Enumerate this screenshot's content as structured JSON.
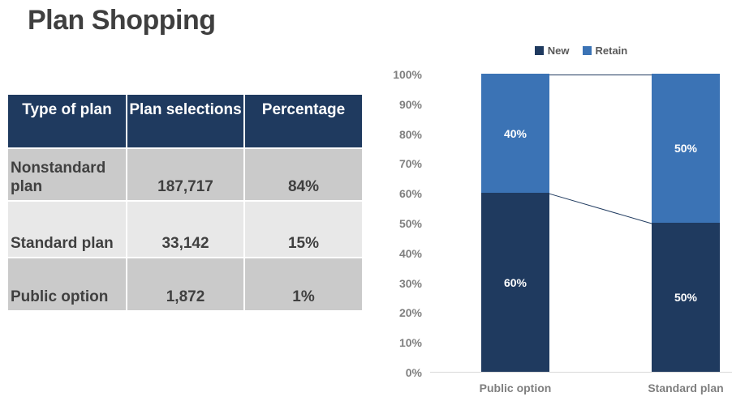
{
  "page": {
    "title": "Plan Shopping"
  },
  "table": {
    "headers": [
      "Type of plan",
      "Plan selections",
      "Percentage"
    ],
    "rows": [
      [
        "Nonstandard plan",
        "187,717",
        "84%"
      ],
      [
        "Standard plan",
        "33,142",
        "15%"
      ],
      [
        "Public option",
        "1,872",
        "1%"
      ]
    ]
  },
  "chart_data": {
    "type": "bar",
    "subtype": "100%-stacked-column",
    "categories": [
      "Public option",
      "Standard plan"
    ],
    "series": [
      {
        "name": "New",
        "color": "#1f3a5f",
        "values": [
          60,
          50
        ]
      },
      {
        "name": "Retain",
        "color": "#3b73b5",
        "values": [
          40,
          50
        ]
      }
    ],
    "data_labels": [
      [
        "60%",
        "50%"
      ],
      [
        "40%",
        "50%"
      ]
    ],
    "y_ticks": [
      "0%",
      "10%",
      "20%",
      "30%",
      "40%",
      "50%",
      "60%",
      "70%",
      "80%",
      "90%",
      "100%"
    ],
    "ylim": [
      0,
      100
    ],
    "legend_position": "top",
    "grid": false,
    "connector_lines": true,
    "axis_label_color": "#7f7f7f",
    "connector_color": "#1f3a5f"
  },
  "colors": {
    "title_text": "#3f3f3f",
    "table_header_bg": "#1f3a5f",
    "table_row_dark": "#cacaca",
    "table_row_light": "#e8e8e8",
    "table_text": "#404040",
    "axis_line": "#d9d9d9"
  }
}
